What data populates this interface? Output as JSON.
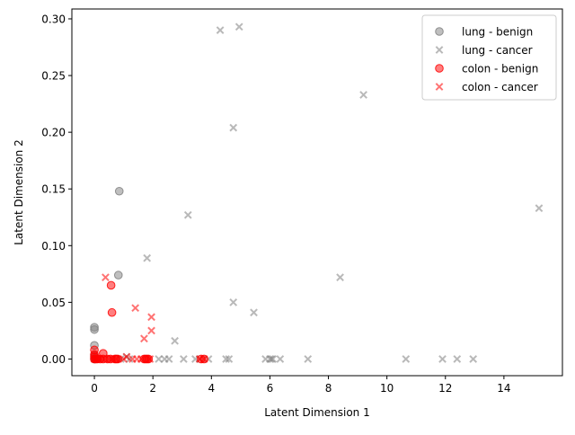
{
  "chart_data": {
    "type": "scatter",
    "title": "",
    "xlabel": "Latent Dimension 1",
    "ylabel": "Latent Dimension 2",
    "xlim": [
      -0.77,
      16.0
    ],
    "ylim": [
      -0.0147,
      0.3087
    ],
    "xticks": [
      "0",
      "2",
      "4",
      "6",
      "8",
      "10",
      "12",
      "14"
    ],
    "xtick_values": [
      0,
      2,
      4,
      6,
      8,
      10,
      12,
      14
    ],
    "yticks": [
      "0.00",
      "0.05",
      "0.10",
      "0.15",
      "0.20",
      "0.25",
      "0.30"
    ],
    "ytick_values": [
      0,
      0.05,
      0.1,
      0.15,
      0.2,
      0.25,
      0.3
    ],
    "grid": false,
    "legend_position": "top-right",
    "series": [
      {
        "name": "lung - benign",
        "marker": "circle",
        "color": "#808080",
        "x": [
          0.85,
          0.82,
          0.0,
          0.0,
          0.0,
          0.0,
          0.0,
          0.0,
          0.02
        ],
        "y": [
          0.148,
          0.074,
          0.028,
          0.026,
          0.012,
          0.003,
          0.001,
          0.0,
          0.0
        ]
      },
      {
        "name": "lung - cancer",
        "marker": "x",
        "color": "#808080",
        "x": [
          4.3,
          4.95,
          9.2,
          4.75,
          15.2,
          3.2,
          1.8,
          8.4,
          4.75,
          5.45,
          2.75,
          1.1,
          2.2,
          2.4,
          2.55,
          3.05,
          3.45,
          3.6,
          3.9,
          4.5,
          4.6,
          5.85,
          6.0,
          6.05,
          6.1,
          6.35,
          7.3,
          10.65,
          11.9,
          12.4,
          12.95,
          1.2,
          0.9
        ],
        "y": [
          0.29,
          0.293,
          0.233,
          0.204,
          0.133,
          0.127,
          0.089,
          0.072,
          0.05,
          0.041,
          0.016,
          0.002,
          0.0,
          0.0,
          0.0,
          0.0,
          0.0,
          0.0,
          0.0,
          0.0,
          0.0,
          0.0,
          0.0,
          0.0,
          0.0,
          0.0,
          0.0,
          0.0,
          0.0,
          0.0,
          0.0,
          0.0,
          0.0
        ]
      },
      {
        "name": "colon - benign",
        "marker": "circle",
        "color": "#ff0000",
        "x": [
          0.57,
          0.6,
          0.0,
          0.0,
          0.0,
          0.0,
          0.05,
          0.1,
          0.2,
          0.3,
          0.3,
          0.45,
          0.55,
          0.7,
          0.75,
          0.8,
          1.7,
          1.75,
          1.8,
          1.85,
          3.65,
          3.75
        ],
        "y": [
          0.065,
          0.041,
          0.008,
          0.004,
          0.002,
          0.0,
          0.0,
          0.0,
          0.0,
          0.005,
          0.0,
          0.0,
          0.0,
          0.0,
          0.0,
          0.0,
          0.0,
          0.0,
          0.0,
          0.0,
          0.0,
          0.0
        ]
      },
      {
        "name": "colon - cancer",
        "marker": "x",
        "color": "#ff0000",
        "x": [
          0.38,
          1.4,
          1.95,
          1.95,
          1.7,
          0.0,
          0.05,
          0.15,
          0.25,
          0.35,
          0.5,
          0.6,
          0.75,
          1.0,
          1.1,
          1.3,
          1.45,
          1.6,
          1.9,
          3.6,
          3.75
        ],
        "y": [
          0.072,
          0.045,
          0.037,
          0.025,
          0.018,
          0.0,
          0.0,
          0.0,
          0.0,
          0.0,
          0.0,
          0.0,
          0.0,
          0.0,
          0.002,
          0.0,
          0.0,
          0.0,
          0.0,
          0.0,
          0.0
        ]
      }
    ]
  }
}
